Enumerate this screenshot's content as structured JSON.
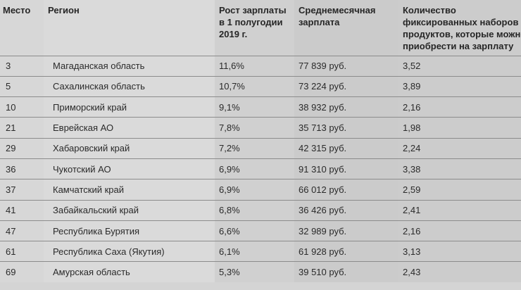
{
  "headers": [
    "Место",
    "Регион",
    "Рост зарплаты в 1 полугодии 2019 г.",
    "Среднемесячная зарплата",
    "Количество фиксированных наборов продуктов, которые можно приобрести на зарплату"
  ],
  "rows": [
    {
      "place": "3",
      "region": "Магаданская область",
      "growth": "11,6%",
      "salary": "77 839 руб.",
      "sets": "3,52"
    },
    {
      "place": "5",
      "region": "Сахалинская область",
      "growth": "10,7%",
      "salary": "73 224 руб.",
      "sets": "3,89"
    },
    {
      "place": "10",
      "region": "Приморский край",
      "growth": "9,1%",
      "salary": "38 932 руб.",
      "sets": "2,16"
    },
    {
      "place": "21",
      "region": "Еврейская АО",
      "growth": "7,8%",
      "salary": "35 713 руб.",
      "sets": "1,98"
    },
    {
      "place": "29",
      "region": "Хабаровский край",
      "growth": "7,2%",
      "salary": "42 315 руб.",
      "sets": "2,24"
    },
    {
      "place": "36",
      "region": "Чукотский АО",
      "growth": "6,9%",
      "salary": "91 310 руб.",
      "sets": "3,38"
    },
    {
      "place": "37",
      "region": "Камчатский край",
      "growth": "6,9%",
      "salary": "66 012 руб.",
      "sets": "2,59"
    },
    {
      "place": "41",
      "region": "Забайкальский край",
      "growth": "6,8%",
      "salary": "36 426 руб.",
      "sets": "2,41"
    },
    {
      "place": "47",
      "region": "Республика Бурятия",
      "growth": "6,6%",
      "salary": "32 989 руб.",
      "sets": "2,16"
    },
    {
      "place": "61",
      "region": "Республика Саха (Якутия)",
      "growth": "6,1%",
      "salary": "61 928 руб.",
      "sets": "3,13"
    },
    {
      "place": "69",
      "region": "Амурская область",
      "growth": "5,3%",
      "salary": "39 510 руб.",
      "sets": "2,43"
    }
  ]
}
